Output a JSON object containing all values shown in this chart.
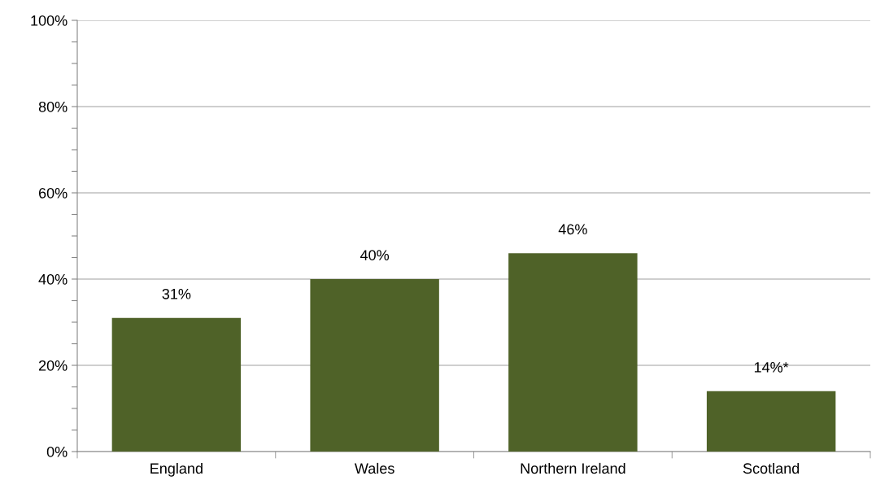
{
  "chart_data": {
    "type": "bar",
    "categories": [
      "England",
      "Wales",
      "Northern Ireland",
      "Scotland"
    ],
    "values": [
      31,
      40,
      46,
      14
    ],
    "color": "#4f6228",
    "value_labels": [
      "31%",
      "40%",
      "46%",
      "14%*"
    ],
    "ylim": [
      0,
      100
    ],
    "yticks": [
      {
        "value": 0,
        "label": "0%"
      },
      {
        "value": 5,
        "label": null
      },
      {
        "value": 10,
        "label": null
      },
      {
        "value": 15,
        "label": null
      },
      {
        "value": 20,
        "label": "20%"
      },
      {
        "value": 25,
        "label": null
      },
      {
        "value": 30,
        "label": null
      },
      {
        "value": 35,
        "label": null
      },
      {
        "value": 40,
        "label": "40%"
      },
      {
        "value": 45,
        "label": null
      },
      {
        "value": 50,
        "label": null
      },
      {
        "value": 55,
        "label": null
      },
      {
        "value": 60,
        "label": "60%"
      },
      {
        "value": 65,
        "label": null
      },
      {
        "value": 70,
        "label": null
      },
      {
        "value": 75,
        "label": null
      },
      {
        "value": 80,
        "label": "80%"
      },
      {
        "value": 85,
        "label": null
      },
      {
        "value": 90,
        "label": null
      },
      {
        "value": 95,
        "label": null
      },
      {
        "value": 100,
        "label": "100%"
      }
    ],
    "grid": "y"
  }
}
